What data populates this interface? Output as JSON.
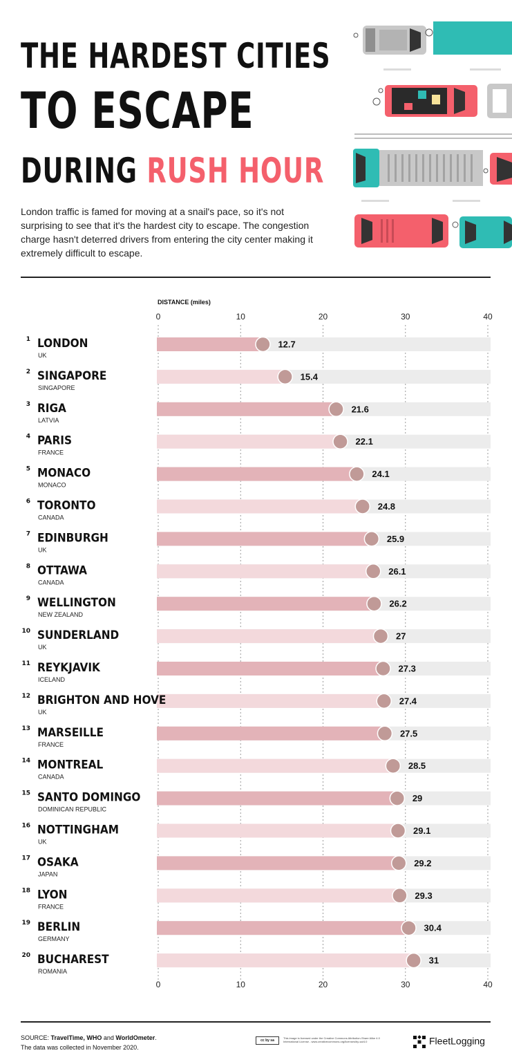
{
  "title": {
    "line1": "THE HARDEST CITIES",
    "line2": "TO ESCAPE",
    "line3_plain": "DURING ",
    "line3_accent": "RUSH HOUR"
  },
  "intro": "London traffic is famed for moving at a snail's pace, so it's not surprising to see that it's the hardest city to escape. The congestion charge hasn't deterred drivers from entering the city center making it extremely difficult to escape.",
  "colors": {
    "accent": "#f4606c",
    "bar_dark": "#e3b3b8",
    "bar_light": "#f3d9dc",
    "track": "#ececec",
    "dot": "#c09a97",
    "teal": "#2fbcb4",
    "gray_car": "#c8c8c8"
  },
  "chart_data": {
    "type": "bar",
    "orientation": "horizontal",
    "xlabel": "DISTANCE (miles)",
    "xlim": [
      0,
      40
    ],
    "xticks": [
      0,
      10,
      20,
      30,
      40
    ],
    "rows": [
      {
        "rank": "1",
        "city": "LONDON",
        "country": "UK",
        "value": 12.7,
        "label": "12.7"
      },
      {
        "rank": "2",
        "city": "SINGAPORE",
        "country": "SINGAPORE",
        "value": 15.4,
        "label": "15.4"
      },
      {
        "rank": "3",
        "city": "RIGA",
        "country": "LATVIA",
        "value": 21.6,
        "label": "21.6"
      },
      {
        "rank": "4",
        "city": "PARIS",
        "country": "FRANCE",
        "value": 22.1,
        "label": "22.1"
      },
      {
        "rank": "5",
        "city": "MONACO",
        "country": "MONACO",
        "value": 24.1,
        "label": "24.1"
      },
      {
        "rank": "6",
        "city": "TORONTO",
        "country": "CANADA",
        "value": 24.8,
        "label": "24.8"
      },
      {
        "rank": "7",
        "city": "EDINBURGH",
        "country": "UK",
        "value": 25.9,
        "label": "25.9"
      },
      {
        "rank": "8",
        "city": "OTTAWA",
        "country": "CANADA",
        "value": 26.1,
        "label": "26.1"
      },
      {
        "rank": "9",
        "city": "WELLINGTON",
        "country": "NEW ZEALAND",
        "value": 26.2,
        "label": "26.2"
      },
      {
        "rank": "10",
        "city": "SUNDERLAND",
        "country": "UK",
        "value": 27,
        "label": "27"
      },
      {
        "rank": "11",
        "city": "REYKJAVIK",
        "country": "ICELAND",
        "value": 27.3,
        "label": "27.3"
      },
      {
        "rank": "12",
        "city": "BRIGHTON AND HOVE",
        "country": "UK",
        "value": 27.4,
        "label": "27.4"
      },
      {
        "rank": "13",
        "city": "MARSEILLE",
        "country": "FRANCE",
        "value": 27.5,
        "label": "27.5"
      },
      {
        "rank": "14",
        "city": "MONTREAL",
        "country": "CANADA",
        "value": 28.5,
        "label": "28.5"
      },
      {
        "rank": "15",
        "city": "SANTO DOMINGO",
        "country": "DOMINICAN REPUBLIC",
        "value": 29,
        "label": "29"
      },
      {
        "rank": "16",
        "city": "NOTTINGHAM",
        "country": "UK",
        "value": 29.1,
        "label": "29.1"
      },
      {
        "rank": "17",
        "city": "OSAKA",
        "country": "JAPAN",
        "value": 29.2,
        "label": "29.2"
      },
      {
        "rank": "18",
        "city": "LYON",
        "country": "FRANCE",
        "value": 29.3,
        "label": "29.3"
      },
      {
        "rank": "19",
        "city": "BERLIN",
        "country": "GERMANY",
        "value": 30.4,
        "label": "30.4"
      },
      {
        "rank": "20",
        "city": "BUCHAREST",
        "country": "ROMANIA",
        "value": 31,
        "label": "31"
      }
    ]
  },
  "footer": {
    "source_prefix": "SOURCE: ",
    "source_a": "TravelTime, WHO",
    "source_and": " and ",
    "source_b": "WorldOmeter",
    "source_end": ".",
    "collected": "The data was collected in November 2020.",
    "license": "This image is licensed under the Creative Commons Attribution-Share Alike 4.0 International License - www.creativecommons.org/licenses/by-sa/4.0",
    "cc_badge": "cc by sa",
    "brand": "FleetLogging"
  }
}
